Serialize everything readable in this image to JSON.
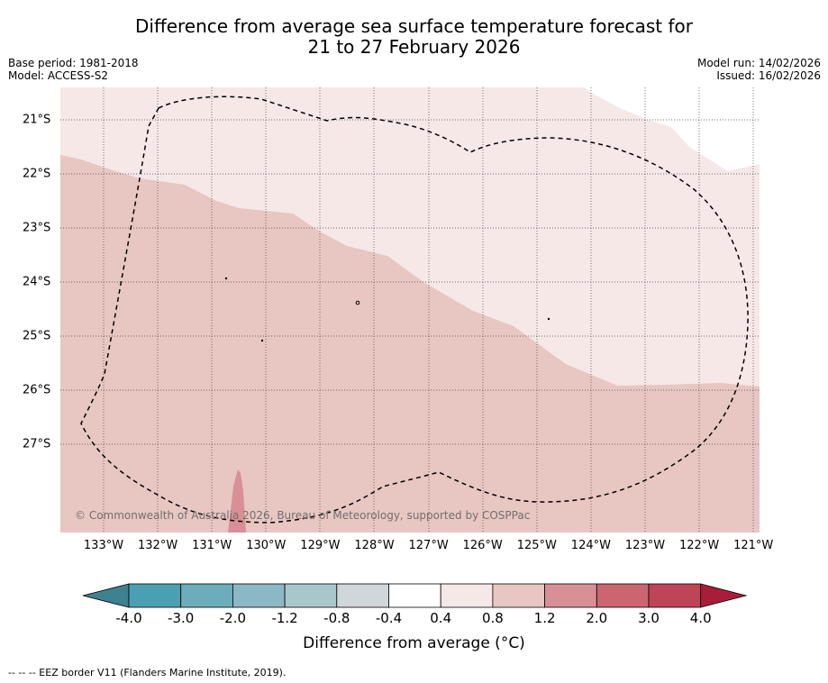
{
  "title_line1": "Difference from average sea surface temperature forecast for",
  "title_line2": "21 to 27 February 2026",
  "base_period": "Base period: 1981-2018",
  "model": "Model: ACCESS-S2",
  "model_run": "Model run: 14/02/2026",
  "issued": "Issued: 16/02/2026",
  "lat_labels": [
    "21°S",
    "22°S",
    "23°S",
    "24°S",
    "25°S",
    "26°S",
    "27°S"
  ],
  "lon_labels": [
    "133°W",
    "132°W",
    "131°W",
    "130°W",
    "129°W",
    "128°W",
    "127°W",
    "126°W",
    "125°W",
    "124°W",
    "123°W",
    "122°W",
    "121°W"
  ],
  "copyright": "© Commonwealth of Australia 2026, Bureau of Meteorology, supported by COSPPac",
  "colorbar": {
    "ticks": [
      "-4.0",
      "-3.0",
      "-2.0",
      "-1.2",
      "-0.8",
      "-0.4",
      "0.4",
      "0.8",
      "1.2",
      "2.0",
      "3.0",
      "4.0"
    ],
    "colors": [
      "#3e8290",
      "#4aa0b2",
      "#6badba",
      "#8bb8c5",
      "#a8c7cc",
      "#d0d6da",
      "#ffffff",
      "#f5e8e7",
      "#e8c6c2",
      "#d88f96",
      "#cb6670",
      "#be4557",
      "#a81e3a"
    ],
    "label": "Difference from average (",
    "label_unit": "°C)"
  },
  "footer": "--  --  -- EEZ border V11 (Flanders Marine Institute, 2019).",
  "map_fills": {
    "low_band": "#f5e8e7",
    "mid_band": "#e8c6c2",
    "high_band": "#d88f96"
  }
}
